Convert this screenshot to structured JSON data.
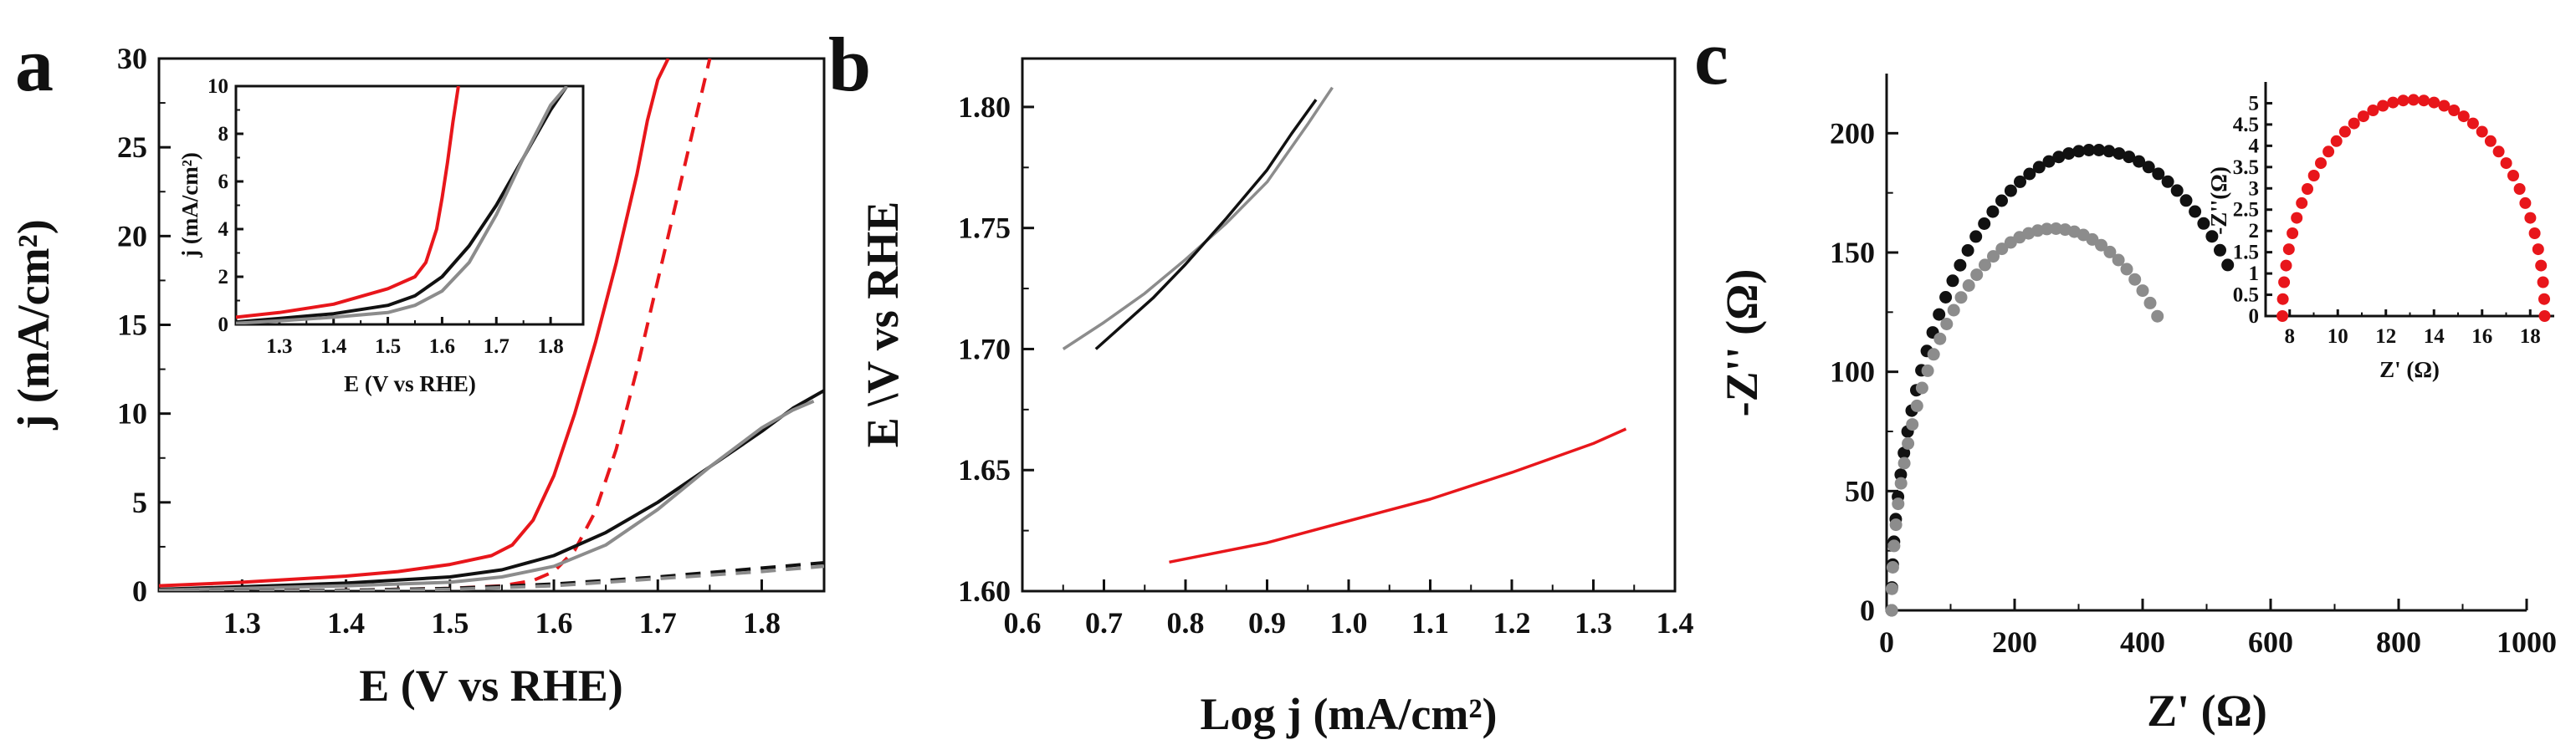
{
  "chart_data": [
    {
      "panel": "a",
      "type": "line",
      "xlabel": "E (V vs RHE)",
      "ylabel": "j (mA/cm²)",
      "xlim": [
        1.22,
        1.86
      ],
      "ylim": [
        0,
        30
      ],
      "xticks": [
        1.3,
        1.4,
        1.5,
        1.6,
        1.7,
        1.8
      ],
      "yticks": [
        0,
        5,
        10,
        15,
        20,
        25,
        30
      ],
      "series": [
        {
          "color": "#e8161b",
          "dash": "solid",
          "x": [
            1.22,
            1.3,
            1.4,
            1.45,
            1.5,
            1.54,
            1.56,
            1.58,
            1.6,
            1.62,
            1.64,
            1.66,
            1.68,
            1.69,
            1.7,
            1.71
          ],
          "y": [
            0.3,
            0.5,
            0.85,
            1.1,
            1.5,
            2.0,
            2.6,
            4.0,
            6.5,
            10.0,
            14.0,
            18.5,
            23.5,
            26.5,
            28.8,
            30
          ]
        },
        {
          "color": "#e8161b",
          "dash": "dashed",
          "x": [
            1.22,
            1.4,
            1.5,
            1.55,
            1.58,
            1.6,
            1.62,
            1.64,
            1.66,
            1.68,
            1.7,
            1.72,
            1.74,
            1.75
          ],
          "y": [
            0,
            0.05,
            0.15,
            0.3,
            0.6,
            1.1,
            2.3,
            4.5,
            8.0,
            12.5,
            17.5,
            22.5,
            27.5,
            30
          ]
        },
        {
          "color": "#111111",
          "dash": "solid",
          "x": [
            1.22,
            1.3,
            1.4,
            1.5,
            1.55,
            1.6,
            1.65,
            1.7,
            1.75,
            1.8,
            1.83,
            1.86
          ],
          "y": [
            0.1,
            0.25,
            0.45,
            0.8,
            1.2,
            2.0,
            3.3,
            5.0,
            7.0,
            9.0,
            10.3,
            11.3
          ]
        },
        {
          "color": "#8c8c8c",
          "dash": "solid",
          "x": [
            1.22,
            1.3,
            1.4,
            1.5,
            1.55,
            1.6,
            1.65,
            1.7,
            1.75,
            1.8,
            1.83,
            1.85
          ],
          "y": [
            0.05,
            0.15,
            0.3,
            0.5,
            0.8,
            1.4,
            2.6,
            4.6,
            7.0,
            9.2,
            10.2,
            10.7
          ]
        },
        {
          "color": "#111111",
          "dash": "dashed",
          "x": [
            1.22,
            1.4,
            1.5,
            1.6,
            1.7,
            1.8,
            1.86
          ],
          "y": [
            0,
            0.05,
            0.15,
            0.4,
            0.8,
            1.3,
            1.6
          ]
        },
        {
          "color": "#8c8c8c",
          "dash": "dashed",
          "x": [
            1.22,
            1.4,
            1.5,
            1.6,
            1.7,
            1.8,
            1.86
          ],
          "y": [
            0,
            0.03,
            0.1,
            0.3,
            0.7,
            1.1,
            1.4
          ]
        }
      ],
      "inset": {
        "xlabel": "E (V vs RHE)",
        "ylabel": "j (mA/cm²)",
        "xlim": [
          1.22,
          1.86
        ],
        "ylim": [
          0,
          10
        ],
        "xticks": [
          1.3,
          1.4,
          1.5,
          1.6,
          1.7,
          1.8
        ],
        "yticks": [
          0,
          2,
          4,
          6,
          8,
          10
        ],
        "series": [
          {
            "color": "#e8161b",
            "x": [
              1.22,
              1.3,
              1.4,
              1.5,
              1.55,
              1.57,
              1.59,
              1.6,
              1.61,
              1.62,
              1.63
            ],
            "y": [
              0.3,
              0.5,
              0.85,
              1.5,
              2.0,
              2.6,
              4.0,
              5.3,
              6.8,
              8.5,
              10.0
            ]
          },
          {
            "color": "#111111",
            "x": [
              1.22,
              1.3,
              1.4,
              1.5,
              1.55,
              1.6,
              1.65,
              1.7,
              1.75,
              1.8,
              1.83
            ],
            "y": [
              0.1,
              0.25,
              0.45,
              0.8,
              1.2,
              2.0,
              3.3,
              5.0,
              7.0,
              9.0,
              10.0
            ]
          },
          {
            "color": "#8c8c8c",
            "x": [
              1.22,
              1.3,
              1.4,
              1.5,
              1.55,
              1.6,
              1.65,
              1.7,
              1.75,
              1.8,
              1.83
            ],
            "y": [
              0.05,
              0.15,
              0.3,
              0.5,
              0.8,
              1.4,
              2.6,
              4.6,
              7.0,
              9.2,
              10.0
            ]
          }
        ]
      }
    },
    {
      "panel": "b",
      "type": "line",
      "xlabel": "Log j (mA/cm²)",
      "ylabel": "E \\V vs RHE",
      "xlim": [
        0.6,
        1.4
      ],
      "ylim": [
        1.6,
        1.82
      ],
      "xticks": [
        0.6,
        0.7,
        0.8,
        0.9,
        1.0,
        1.1,
        1.2,
        1.3,
        1.4
      ],
      "yticks": [
        1.6,
        1.65,
        1.7,
        1.75,
        1.8
      ],
      "series": [
        {
          "color": "#8c8c8c",
          "x": [
            0.65,
            0.7,
            0.75,
            0.8,
            0.85,
            0.9,
            0.95,
            0.98
          ],
          "y": [
            1.7,
            1.711,
            1.723,
            1.737,
            1.752,
            1.769,
            1.793,
            1.808
          ]
        },
        {
          "color": "#111111",
          "x": [
            0.69,
            0.72,
            0.76,
            0.8,
            0.85,
            0.9,
            0.93,
            0.96
          ],
          "y": [
            1.7,
            1.709,
            1.721,
            1.735,
            1.754,
            1.774,
            1.789,
            1.803
          ]
        },
        {
          "color": "#e8161b",
          "x": [
            0.78,
            0.9,
            1.0,
            1.1,
            1.2,
            1.3,
            1.34
          ],
          "y": [
            1.612,
            1.62,
            1.629,
            1.638,
            1.649,
            1.661,
            1.667
          ]
        }
      ]
    },
    {
      "panel": "c",
      "type": "scatter",
      "xlabel": "Z' (Ω)",
      "ylabel": "-Z'' (Ω)",
      "xlim": [
        0,
        1000
      ],
      "ylim": [
        0,
        225
      ],
      "xticks": [
        0,
        200,
        400,
        600,
        800,
        1000
      ],
      "yticks": [
        0,
        50,
        100,
        150,
        200
      ],
      "series": [
        {
          "color": "#111111",
          "semicircle": {
            "x0": 8,
            "x1": 640,
            "ymax": 193,
            "t_end": 0.73,
            "n": 46
          }
        },
        {
          "color": "#8c8c8c",
          "semicircle": {
            "x0": 8,
            "x1": 515,
            "ymax": 160,
            "t_end": 0.72,
            "n": 40
          }
        }
      ],
      "inset": {
        "xlabel": "Z' (Ω)",
        "ylabel": "-Z''(Ω)",
        "xlim": [
          7,
          19
        ],
        "ylim": [
          0,
          5.5
        ],
        "xticks": [
          8,
          10,
          12,
          14,
          16,
          18
        ],
        "yticks": [
          0,
          0.5,
          1,
          1.5,
          2,
          2.5,
          3,
          3.5,
          4,
          4.5,
          5
        ],
        "series": [
          {
            "color": "#e8161b",
            "semicircle": {
              "x0": 7.7,
              "x1": 18.6,
              "ymax": 5.08,
              "t_end": 1.0,
              "n": 40
            }
          }
        ]
      }
    }
  ]
}
